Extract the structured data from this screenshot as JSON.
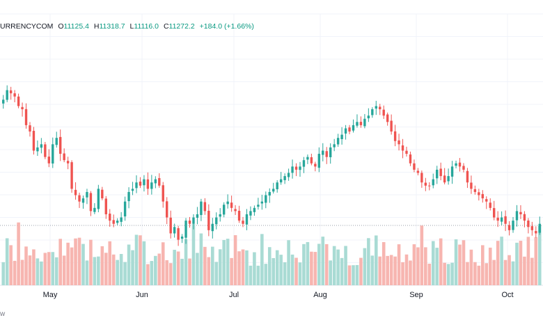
{
  "header": {
    "symbol": "URRENCYCOM",
    "open_label": "O",
    "open": "11125.4",
    "high_label": "H",
    "high": "11318.7",
    "low_label": "L",
    "low": "11116.0",
    "close_label": "C",
    "close": "11272.2",
    "change": "+184.0 (+1.66%)"
  },
  "footer": {
    "text": "w"
  },
  "colors": {
    "up": "#26a69a",
    "down": "#ef5350",
    "vol_up": "#a9dbd4",
    "vol_down": "#f7b5b0"
  },
  "chart_data": {
    "type": "candlestick",
    "x_axis_labels": [
      "May",
      "Jun",
      "Jul",
      "Aug",
      "Sep",
      "Oct"
    ],
    "ohlc_close": [
      11400,
      11550,
      11500,
      11450,
      11300,
      11250,
      11000,
      10900,
      10600,
      10650,
      10700,
      10500,
      10400,
      10700,
      10800,
      10550,
      10450,
      10400,
      10000,
      9900,
      9800,
      9850,
      9950,
      9650,
      9700,
      10000,
      9850,
      9600,
      9500,
      9450,
      9500,
      9550,
      9800,
      9950,
      10000,
      10100,
      10050,
      10150,
      10000,
      10100,
      10150,
      10050,
      9800,
      9550,
      9300,
      9400,
      9200,
      9250,
      9500,
      9450,
      9550,
      9600,
      9800,
      9650,
      9350,
      9450,
      9550,
      9600,
      9750,
      9800,
      9700,
      9650,
      9500,
      9450,
      9600,
      9650,
      9700,
      9750,
      9800,
      9900,
      9950,
      10000,
      10100,
      10150,
      10200,
      10250,
      10350,
      10300,
      10350,
      10450,
      10500,
      10400,
      10350,
      10550,
      10600,
      10500,
      10650,
      10700,
      10800,
      10850,
      10950,
      10900,
      11000,
      11050,
      11000,
      11100,
      11150,
      11250,
      11300,
      11250,
      11150,
      11050,
      10900,
      10750,
      10700,
      10600,
      10550,
      10400,
      10300,
      10250,
      10100,
      10050,
      10050,
      10150,
      10300,
      10200,
      10100,
      10200,
      10350,
      10400,
      10350,
      10300,
      10100,
      10000,
      9950,
      9900,
      9850,
      9800,
      9700,
      9550,
      9500,
      9550,
      9450,
      9350,
      9500,
      9650,
      9600,
      9500,
      9400,
      9350,
      9300,
      9450
    ]
  }
}
